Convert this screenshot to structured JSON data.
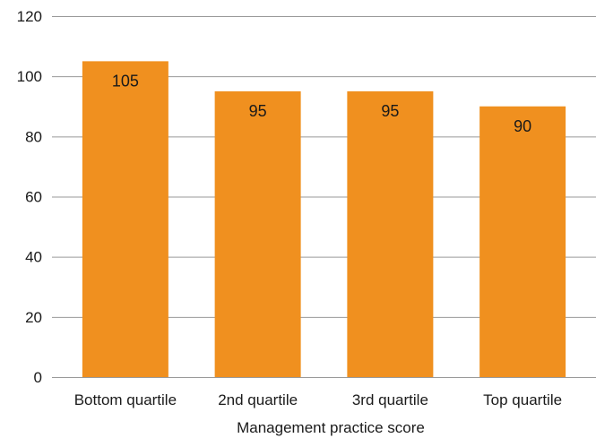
{
  "chart_data": {
    "type": "bar",
    "categories": [
      "Bottom quartile",
      "2nd quartile",
      "3rd quartile",
      "Top quartile"
    ],
    "values": [
      105,
      95,
      95,
      90
    ],
    "data_labels": [
      "105",
      "95",
      "95",
      "90"
    ],
    "title": "",
    "xlabel": "Management practice score",
    "ylabel": "",
    "ylim": [
      0,
      120
    ],
    "yticks": [
      "0",
      "20",
      "40",
      "60",
      "80",
      "100",
      "120"
    ],
    "grid": true,
    "legend": "none",
    "bar_color": "#F0901F"
  }
}
